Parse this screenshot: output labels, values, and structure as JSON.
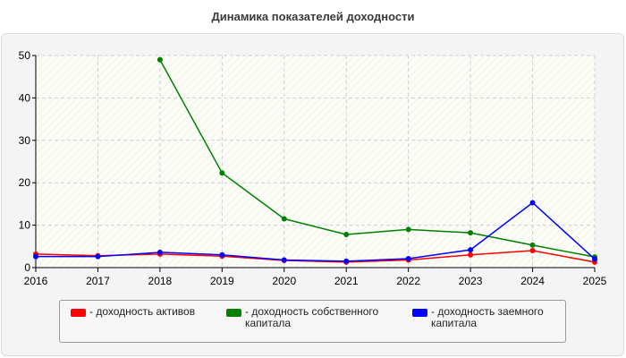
{
  "chart_data": {
    "type": "line",
    "title": "Динамика показателей доходности",
    "x": [
      "2016",
      "2017",
      "2018",
      "2019",
      "2020",
      "2021",
      "2022",
      "2023",
      "2024",
      "2025"
    ],
    "ylim": [
      0,
      50
    ],
    "yticks": [
      0,
      10,
      20,
      30,
      40,
      50
    ],
    "grid": true,
    "legend_position": "bottom",
    "series": [
      {
        "name": "- доходность активов",
        "color": "#ff0000",
        "values": [
          3.2,
          2.8,
          3.2,
          2.7,
          1.7,
          1.3,
          1.8,
          3.0,
          4.0,
          1.3
        ]
      },
      {
        "name": "- доходность собственного капитала",
        "color": "#008000",
        "values": [
          null,
          null,
          49.0,
          22.3,
          11.5,
          7.8,
          9.0,
          8.2,
          5.3,
          2.5
        ]
      },
      {
        "name": "- доходность заемного капитала",
        "color": "#0000ff",
        "values": [
          2.6,
          2.6,
          3.6,
          3.0,
          1.8,
          1.5,
          2.1,
          4.2,
          15.3,
          2.0
        ]
      }
    ]
  }
}
